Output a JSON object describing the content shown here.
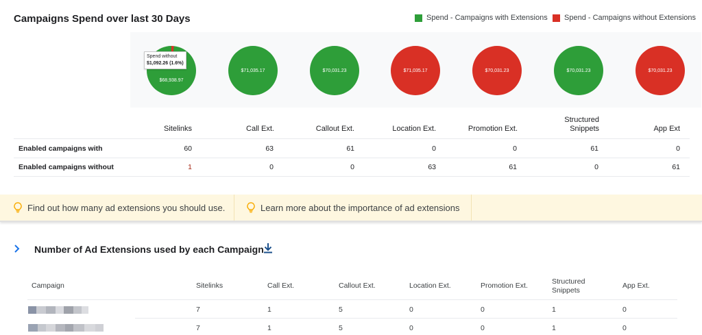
{
  "header": {
    "title": "Campaigns Spend over last 30 Days",
    "legend": [
      {
        "label": "Spend - Campaigns with Extensions",
        "color": "#2e9e39"
      },
      {
        "label": "Spend - Campaigns without Extensions",
        "color": "#d93025"
      }
    ]
  },
  "pies": [
    {
      "label": "$68,938.97",
      "color": "#2e9e39",
      "tooltip_title": "Spend without",
      "tooltip_value": "$1,092.26 (1.6%)",
      "without_share_percent": 1.6
    },
    {
      "label": "$71,035.17",
      "color": "#2e9e39"
    },
    {
      "label": "$70,031.23",
      "color": "#2e9e39"
    },
    {
      "label": "$71,035.17",
      "color": "#d93025"
    },
    {
      "label": "$70,031.23",
      "color": "#d93025"
    },
    {
      "label": "$70,031.23",
      "color": "#2e9e39"
    },
    {
      "label": "$70,031.23",
      "color": "#d93025"
    }
  ],
  "summary_table": {
    "columns": [
      "Sitelinks",
      "Call Ext.",
      "Callout Ext.",
      "Location Ext.",
      "Promotion Ext.",
      "Structured Snippets",
      "App Ext"
    ],
    "rows": [
      {
        "label": "Enabled campaigns with",
        "values": [
          "60",
          "63",
          "61",
          "0",
          "0",
          "61",
          "0"
        ]
      },
      {
        "label": "Enabled campaigns without",
        "values": [
          "1",
          "0",
          "0",
          "63",
          "61",
          "0",
          "61"
        ]
      }
    ]
  },
  "tips": [
    {
      "text": "Find out how many ad extensions you should use.",
      "icon": "lightbulb-icon"
    },
    {
      "text": "Learn more about the importance of ad extensions",
      "icon": "lightbulb-icon"
    }
  ],
  "section2": {
    "title": "Number of Ad Extensions used by each Campaign",
    "expand_icon": "chevron-right-icon",
    "download_icon": "download-icon",
    "columns": [
      "Campaign",
      "Sitelinks",
      "Call Ext.",
      "Callout Ext.",
      "Location Ext.",
      "Promotion Ext.",
      "Structured Snippets",
      "App Ext."
    ],
    "rows": [
      {
        "values": [
          "7",
          "1",
          "5",
          "0",
          "0",
          "1",
          "0"
        ]
      },
      {
        "values": [
          "7",
          "1",
          "5",
          "0",
          "0",
          "1",
          "0"
        ]
      }
    ]
  }
}
